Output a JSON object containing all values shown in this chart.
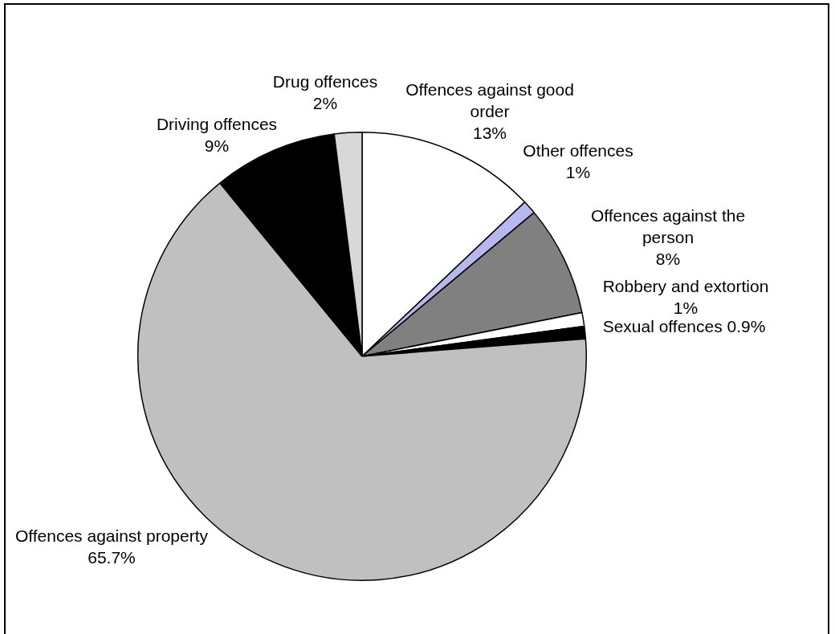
{
  "chart_data": {
    "type": "pie",
    "categories": [
      "Offences against good order",
      "Other offences",
      "Offences against the person",
      "Robbery and extortion",
      "Sexual offences",
      "Offences against property",
      "Driving offences",
      "Drug offences"
    ],
    "values": [
      13,
      1,
      8,
      1,
      0.9,
      65.7,
      9,
      2
    ],
    "colors": [
      "#ffffff",
      "#b8b8f0",
      "#808080",
      "#ffffff",
      "#000000",
      "#c0c0c0",
      "#000000",
      "#d8d8d8"
    ],
    "value_labels": [
      "13%",
      "1%",
      "8%",
      "1%",
      "0.9%",
      "65.7%",
      "9%",
      "2%"
    ]
  }
}
